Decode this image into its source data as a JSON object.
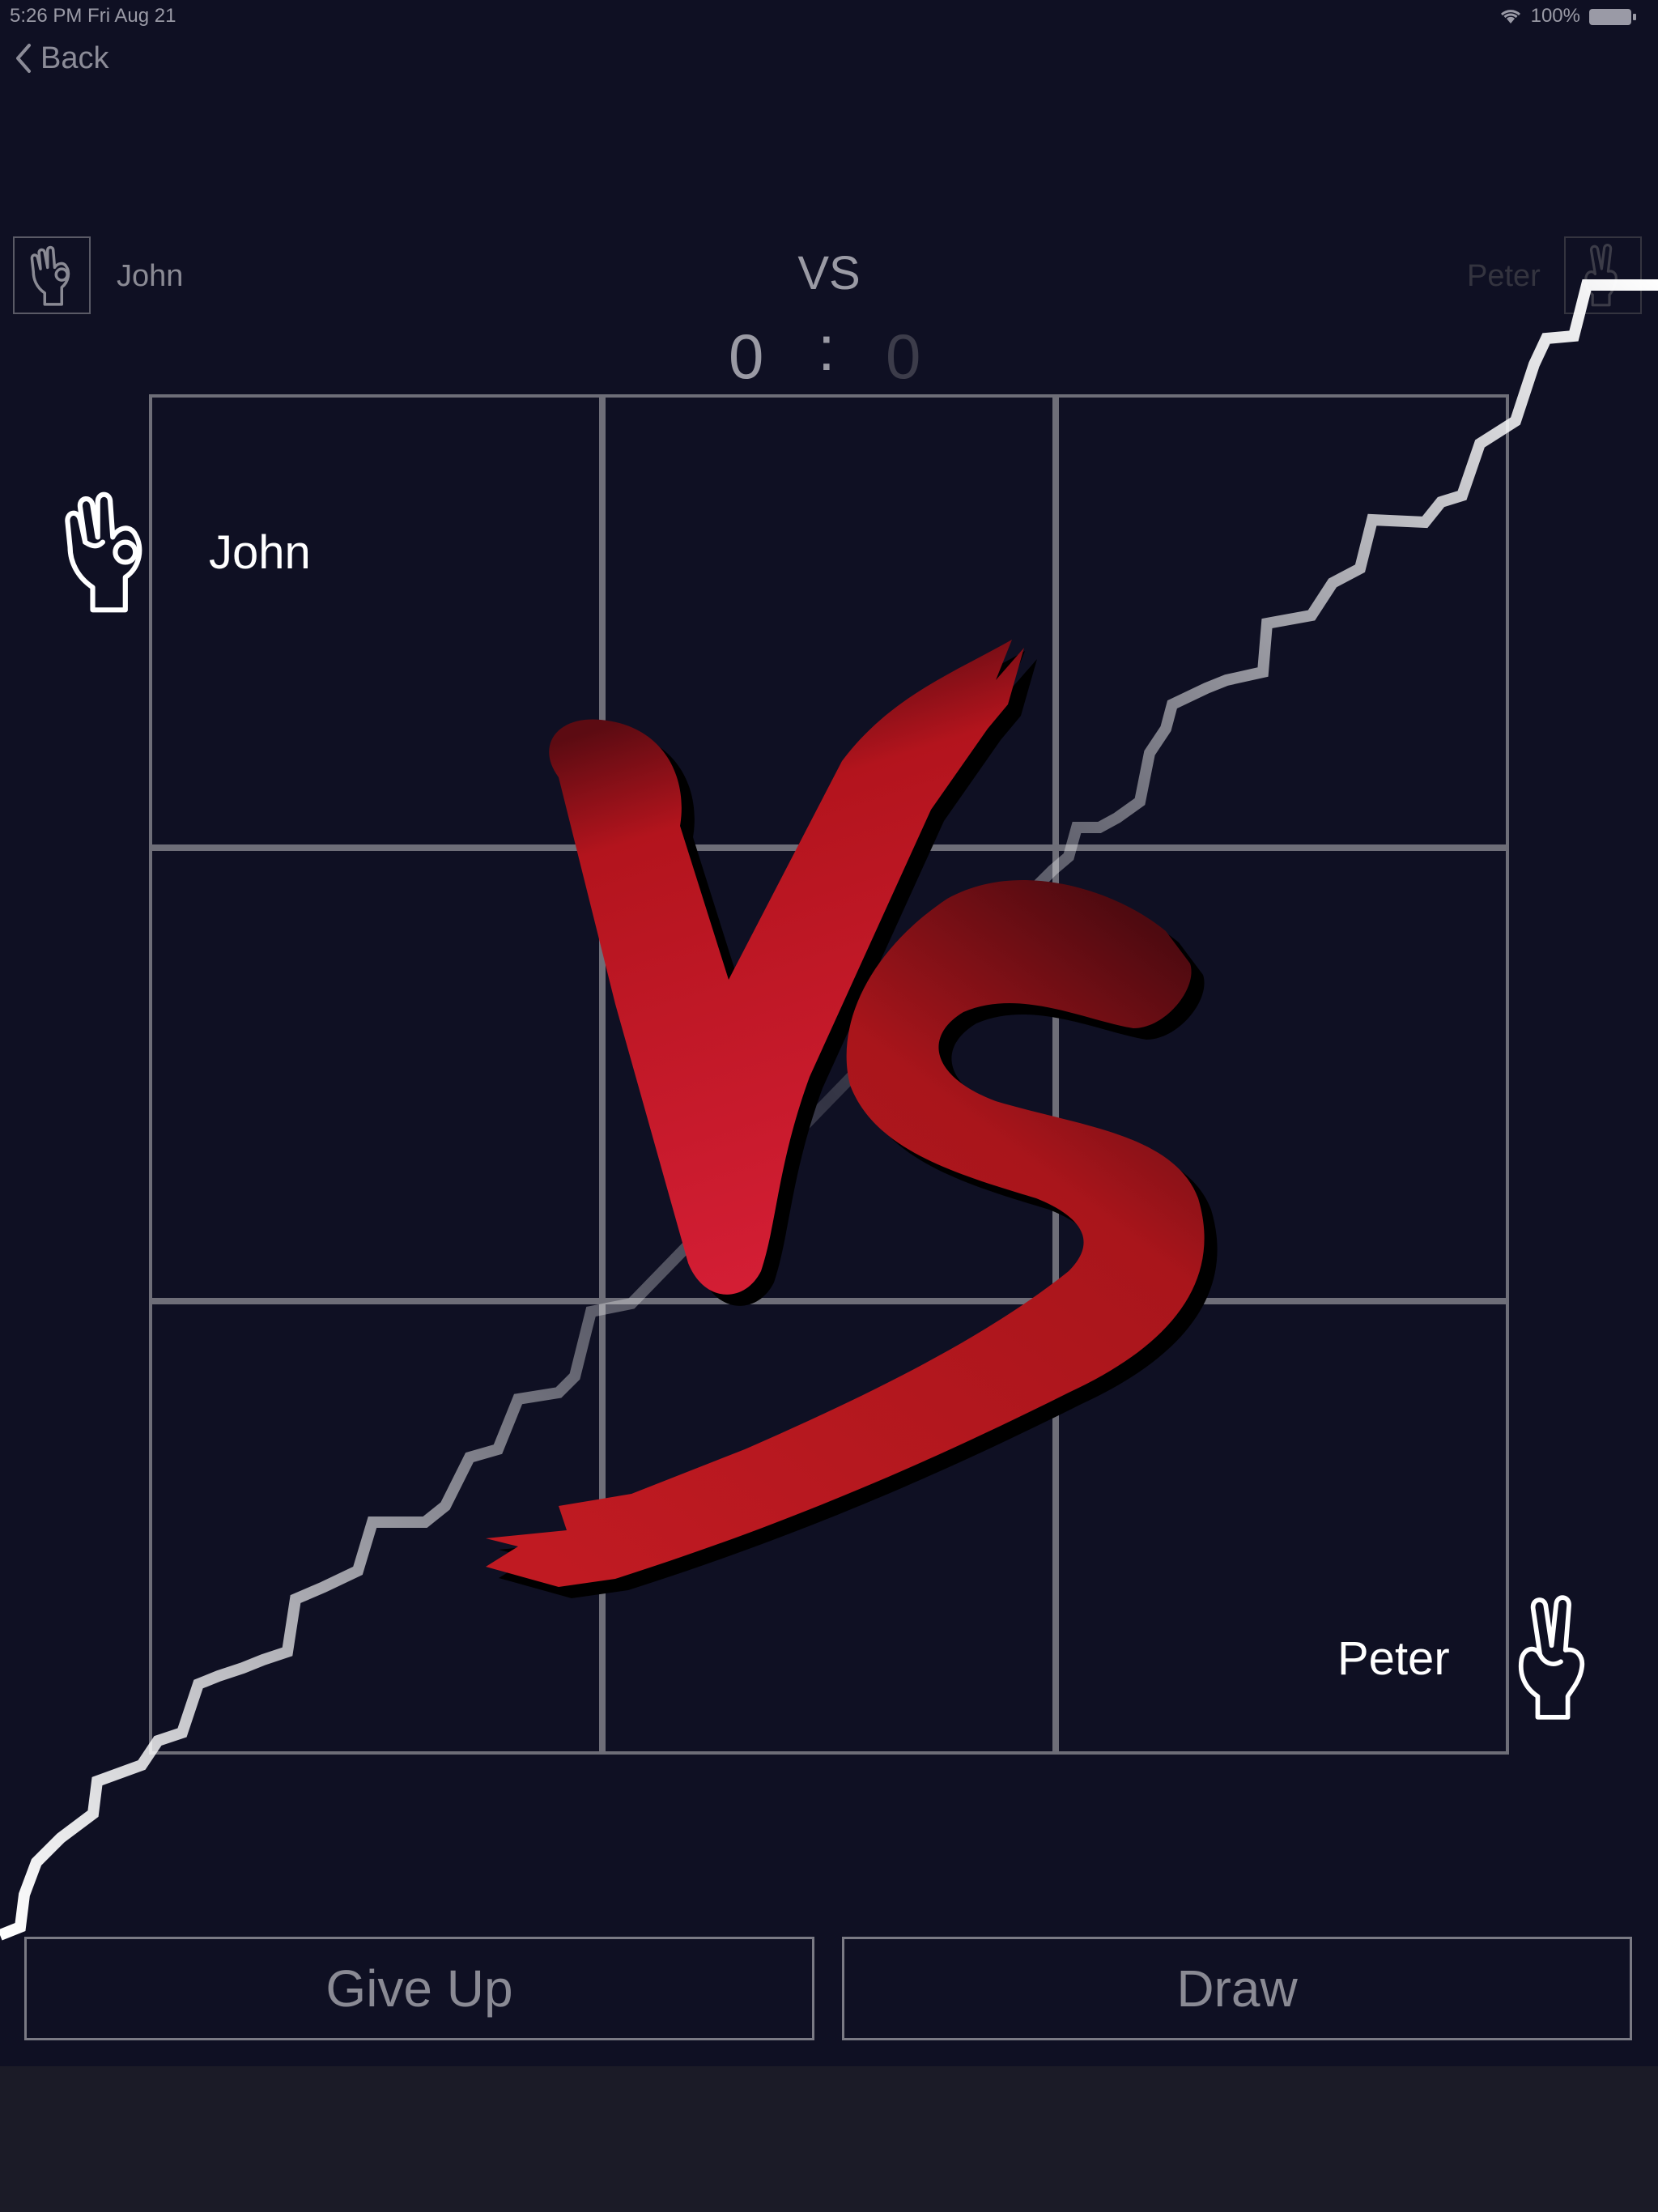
{
  "status_bar": {
    "time_date": "5:26 PM  Fri Aug 21",
    "battery": "100%"
  },
  "nav": {
    "back_label": "Back"
  },
  "header": {
    "player1_name": "John",
    "player2_name": "Peter",
    "vs_label": "VS",
    "score1": "0",
    "separator": ":",
    "score2": "0",
    "player1_icon": "ok-hand-icon",
    "player2_icon": "peace-hand-icon"
  },
  "board": {
    "rows": 3,
    "cols": 3,
    "cells": [
      "",
      "",
      "",
      "",
      "",
      "",
      "",
      "",
      ""
    ]
  },
  "overlay": {
    "top_player": "John",
    "bottom_player": "Peter",
    "emblem": "vs-emblem"
  },
  "actions": {
    "give_up_label": "Give Up",
    "draw_label": "Draw"
  },
  "colors": {
    "background": "#0f1023",
    "grid": "#6e6e78",
    "vs_red": "#c8182a",
    "lightning": "#ffffff"
  }
}
